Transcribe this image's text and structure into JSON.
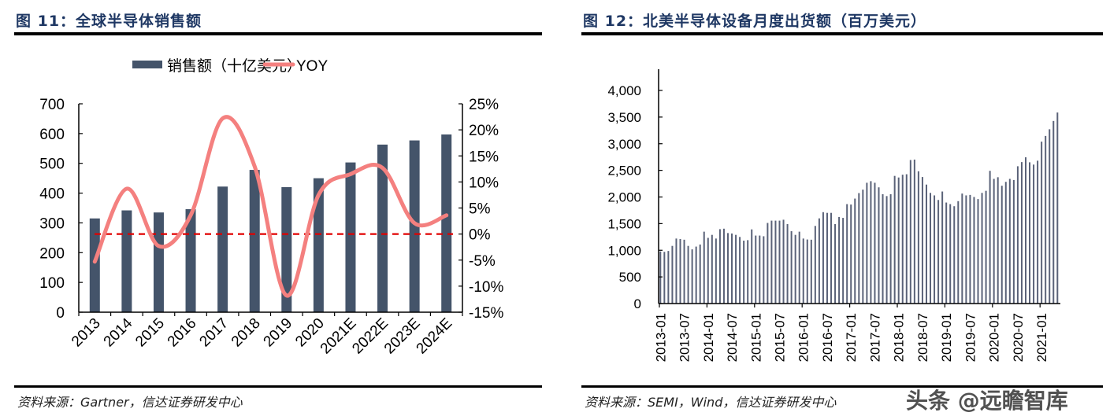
{
  "left": {
    "title": "图 11：全球半导体销售额",
    "source": "资料来源：Gartner，信达证券研发中心"
  },
  "right": {
    "title": "图 12：北美半导体设备月度出货额（百万美元）",
    "source": "资料来源：SEMI，Wind，信达证券研发中心"
  },
  "watermark": "头条 @远瞻智库",
  "colors": {
    "bar": "#44546a",
    "line": "#f4807f",
    "zero_line": "#e00000",
    "title": "#1f3864",
    "bar_right": "#5a6278"
  },
  "chart_data": [
    {
      "type": "bar+line",
      "categories": [
        "2013",
        "2014",
        "2015",
        "2016",
        "2017",
        "2018",
        "2019",
        "2020",
        "2021E",
        "2022E",
        "2023E",
        "2024E"
      ],
      "series": [
        {
          "name": "销售额（十亿美元）",
          "type": "bar",
          "axis": "left",
          "values": [
            315,
            342,
            335,
            346,
            422,
            478,
            420,
            450,
            503,
            563,
            577,
            597
          ]
        },
        {
          "name": "YOY",
          "type": "line",
          "axis": "right",
          "values": [
            -5.3,
            8.7,
            -2.3,
            3.6,
            22.2,
            13.0,
            -11.8,
            7.5,
            11.5,
            12.7,
            2.1,
            3.6
          ]
        }
      ],
      "ylim": [
        0,
        700
      ],
      "yticks": [
        0,
        100,
        200,
        300,
        400,
        500,
        600,
        700
      ],
      "y2lim": [
        -15,
        25
      ],
      "y2ticks": [
        "-15%",
        "-10%",
        "-5%",
        "0%",
        "5%",
        "10%",
        "15%",
        "20%",
        "25%"
      ],
      "reference_line": {
        "axis": "right",
        "value": 0,
        "style": "dashed"
      },
      "legend": "top",
      "grid": false
    },
    {
      "type": "bar",
      "start": "2013-01",
      "values": [
        978,
        970,
        987,
        1082,
        1220,
        1211,
        1198,
        1082,
        1017,
        1069,
        1108,
        1349,
        1233,
        1289,
        1220,
        1396,
        1405,
        1323,
        1315,
        1289,
        1250,
        1181,
        1190,
        1392,
        1276,
        1276,
        1263,
        1513,
        1556,
        1556,
        1556,
        1573,
        1491,
        1358,
        1289,
        1349,
        1220,
        1202,
        1198,
        1457,
        1599,
        1715,
        1702,
        1702,
        1491,
        1625,
        1608,
        1866,
        1858,
        1970,
        2073,
        2138,
        2267,
        2297,
        2267,
        2181,
        2052,
        2017,
        2052,
        2396,
        2366,
        2418,
        2427,
        2694,
        2702,
        2483,
        2375,
        2233,
        2077,
        2030,
        1944,
        2103,
        1896,
        1866,
        1827,
        1922,
        2064,
        2030,
        2039,
        2000,
        1961,
        2077,
        2116,
        2491,
        2340,
        2371,
        2211,
        2284,
        2340,
        2319,
        2577,
        2655,
        2745,
        2651,
        2608,
        2681,
        3039,
        3146,
        3271,
        3427,
        3586
      ],
      "xticklabels": [
        "2013-01",
        "2013-07",
        "2014-01",
        "2014-07",
        "2015-01",
        "2015-07",
        "2016-01",
        "2016-07",
        "2017-01",
        "2017-07",
        "2018-01",
        "2018-07",
        "2019-01",
        "2019-07",
        "2020-01",
        "2020-07",
        "2021-01"
      ],
      "ylim": [
        0,
        4000
      ],
      "yticks": [
        "0",
        "500",
        "1,000",
        "1,500",
        "2,000",
        "2,500",
        "3,000",
        "3,500",
        "4,000"
      ],
      "grid": false
    }
  ]
}
